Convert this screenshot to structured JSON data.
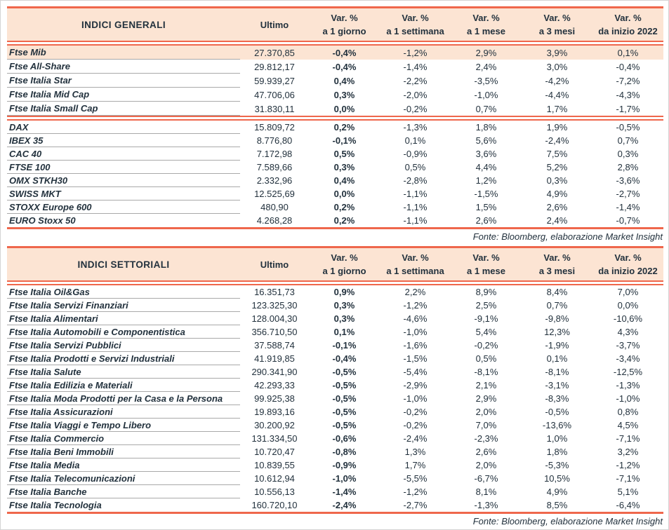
{
  "colors": {
    "accent_red": "#ef674c",
    "header_bg": "#fce4d3",
    "highlight_row_bg": "#fce4d3",
    "text": "#22313d",
    "row_separator_gray": "#a9a9a9"
  },
  "tables": [
    {
      "title": "INDICI GENERALI",
      "col_headers": {
        "name": "INDICI GENERALI",
        "ultimo": "Ultimo",
        "var_columns": [
          {
            "line1": "Var. %",
            "line2": "a 1 giorno"
          },
          {
            "line1": "Var. %",
            "line2": "a 1 settimana"
          },
          {
            "line1": "Var. %",
            "line2": "a 1 mese"
          },
          {
            "line1": "Var. %",
            "line2": "a 3 mesi"
          },
          {
            "line1": "Var. %",
            "line2": "da inizio 2022"
          }
        ]
      },
      "groups": [
        {
          "rows": [
            {
              "name": "Ftse Mib",
              "ultimo": "27.370,85",
              "vars": [
                "-0,4%",
                "-1,2%",
                "2,9%",
                "3,9%",
                "0,1%"
              ],
              "highlight": true
            },
            {
              "name": "Ftse All-Share",
              "ultimo": "29.812,17",
              "vars": [
                "-0,4%",
                "-1,4%",
                "2,4%",
                "3,0%",
                "-0,4%"
              ]
            },
            {
              "name": "Ftse Italia Star",
              "ultimo": "59.939,27",
              "vars": [
                "0,4%",
                "-2,2%",
                "-3,5%",
                "-4,2%",
                "-7,2%"
              ]
            },
            {
              "name": "Ftse Italia Mid Cap",
              "ultimo": "47.706,06",
              "vars": [
                "0,3%",
                "-2,0%",
                "-1,0%",
                "-4,4%",
                "-4,3%"
              ]
            },
            {
              "name": "Ftse Italia Small Cap",
              "ultimo": "31.830,11",
              "vars": [
                "0,0%",
                "-0,2%",
                "0,7%",
                "1,7%",
                "-1,7%"
              ]
            }
          ]
        },
        {
          "rows": [
            {
              "name": "DAX",
              "ultimo": "15.809,72",
              "vars": [
                "0,2%",
                "-1,3%",
                "1,8%",
                "1,9%",
                "-0,5%"
              ]
            },
            {
              "name": "IBEX 35",
              "ultimo": "8.776,80",
              "vars": [
                "-0,1%",
                "0,1%",
                "5,6%",
                "-2,4%",
                "0,7%"
              ]
            },
            {
              "name": "CAC 40",
              "ultimo": "7.172,98",
              "vars": [
                "0,5%",
                "-0,9%",
                "3,6%",
                "7,5%",
                "0,3%"
              ]
            },
            {
              "name": "FTSE 100",
              "ultimo": "7.589,66",
              "vars": [
                "0,3%",
                "0,5%",
                "4,4%",
                "5,2%",
                "2,8%"
              ]
            },
            {
              "name": "OMX STKH30",
              "ultimo": "2.332,96",
              "vars": [
                "0,4%",
                "-2,8%",
                "1,2%",
                "0,3%",
                "-3,6%"
              ]
            },
            {
              "name": "SWISS MKT",
              "ultimo": "12.525,69",
              "vars": [
                "0,0%",
                "-1,1%",
                "-1,5%",
                "4,9%",
                "-2,7%"
              ]
            },
            {
              "name": "STOXX Europe 600",
              "ultimo": "480,90",
              "vars": [
                "0,2%",
                "-1,1%",
                "1,5%",
                "2,6%",
                "-1,4%"
              ]
            },
            {
              "name": "EURO Stoxx 50",
              "ultimo": "4.268,28",
              "vars": [
                "0,2%",
                "-1,1%",
                "2,6%",
                "2,4%",
                "-0,7%"
              ]
            }
          ]
        }
      ],
      "source": "Fonte: Bloomberg, elaborazione Market Insight"
    },
    {
      "title": "INDICI SETTORIALI",
      "col_headers": {
        "name": "INDICI SETTORIALI",
        "ultimo": "Ultimo",
        "var_columns": [
          {
            "line1": "Var. %",
            "line2": "a 1 giorno"
          },
          {
            "line1": "Var. %",
            "line2": "a 1 settimana"
          },
          {
            "line1": "Var. %",
            "line2": "a 1 mese"
          },
          {
            "line1": "Var. %",
            "line2": "a 3 mesi"
          },
          {
            "line1": "Var. %",
            "line2": "da inizio 2022"
          }
        ]
      },
      "groups": [
        {
          "rows": [
            {
              "name": "Ftse Italia Oil&Gas",
              "ultimo": "16.351,73",
              "vars": [
                "0,9%",
                "2,2%",
                "8,9%",
                "8,4%",
                "7,0%"
              ]
            },
            {
              "name": "Ftse Italia Servizi Finanziari",
              "ultimo": "123.325,30",
              "vars": [
                "0,3%",
                "-1,2%",
                "2,5%",
                "0,7%",
                "0,0%"
              ]
            },
            {
              "name": "Ftse Italia Alimentari",
              "ultimo": "128.004,30",
              "vars": [
                "0,3%",
                "-4,6%",
                "-9,1%",
                "-9,8%",
                "-10,6%"
              ]
            },
            {
              "name": "Ftse Italia Automobili e Componentistica",
              "ultimo": "356.710,50",
              "vars": [
                "0,1%",
                "-1,0%",
                "5,4%",
                "12,3%",
                "4,3%"
              ]
            },
            {
              "name": "Ftse Italia Servizi Pubblici",
              "ultimo": "37.588,74",
              "vars": [
                "-0,1%",
                "-1,6%",
                "-0,2%",
                "-1,9%",
                "-3,7%"
              ]
            },
            {
              "name": "Ftse Italia Prodotti e Servizi Industriali",
              "ultimo": "41.919,85",
              "vars": [
                "-0,4%",
                "-1,5%",
                "0,5%",
                "0,1%",
                "-3,4%"
              ]
            },
            {
              "name": "Ftse Italia Salute",
              "ultimo": "290.341,90",
              "vars": [
                "-0,5%",
                "-5,4%",
                "-8,1%",
                "-8,1%",
                "-12,5%"
              ]
            },
            {
              "name": "Ftse Italia Edilizia e Materiali",
              "ultimo": "42.293,33",
              "vars": [
                "-0,5%",
                "-2,9%",
                "2,1%",
                "-3,1%",
                "-1,3%"
              ]
            },
            {
              "name": "Ftse Italia Moda Prodotti per la Casa e la Persona",
              "ultimo": "99.925,38",
              "vars": [
                "-0,5%",
                "-1,0%",
                "2,9%",
                "-8,3%",
                "-1,0%"
              ]
            },
            {
              "name": "Ftse Italia Assicurazioni",
              "ultimo": "19.893,16",
              "vars": [
                "-0,5%",
                "-0,2%",
                "2,0%",
                "-0,5%",
                "0,8%"
              ]
            },
            {
              "name": "Ftse Italia Viaggi e Tempo Libero",
              "ultimo": "30.200,92",
              "vars": [
                "-0,5%",
                "-0,2%",
                "7,0%",
                "-13,6%",
                "4,5%"
              ]
            },
            {
              "name": "Ftse Italia Commercio",
              "ultimo": "131.334,50",
              "vars": [
                "-0,6%",
                "-2,4%",
                "-2,3%",
                "1,0%",
                "-7,1%"
              ]
            },
            {
              "name": "Ftse Italia Beni Immobili",
              "ultimo": "10.720,47",
              "vars": [
                "-0,8%",
                "1,3%",
                "2,6%",
                "1,8%",
                "3,2%"
              ]
            },
            {
              "name": "Ftse Italia Media",
              "ultimo": "10.839,55",
              "vars": [
                "-0,9%",
                "1,7%",
                "2,0%",
                "-5,3%",
                "-1,2%"
              ]
            },
            {
              "name": "Ftse Italia Telecomunicazioni",
              "ultimo": "10.612,94",
              "vars": [
                "-1,0%",
                "-5,5%",
                "-6,7%",
                "10,5%",
                "-7,1%"
              ]
            },
            {
              "name": "Ftse Italia Banche",
              "ultimo": "10.556,13",
              "vars": [
                "-1,4%",
                "-1,2%",
                "8,1%",
                "4,9%",
                "5,1%"
              ]
            },
            {
              "name": "Ftse Italia Tecnologia",
              "ultimo": "160.720,10",
              "vars": [
                "-2,4%",
                "-2,7%",
                "-1,3%",
                "8,5%",
                "-6,4%"
              ]
            }
          ]
        }
      ],
      "source": "Fonte: Bloomberg, elaborazione Market Insight"
    }
  ]
}
